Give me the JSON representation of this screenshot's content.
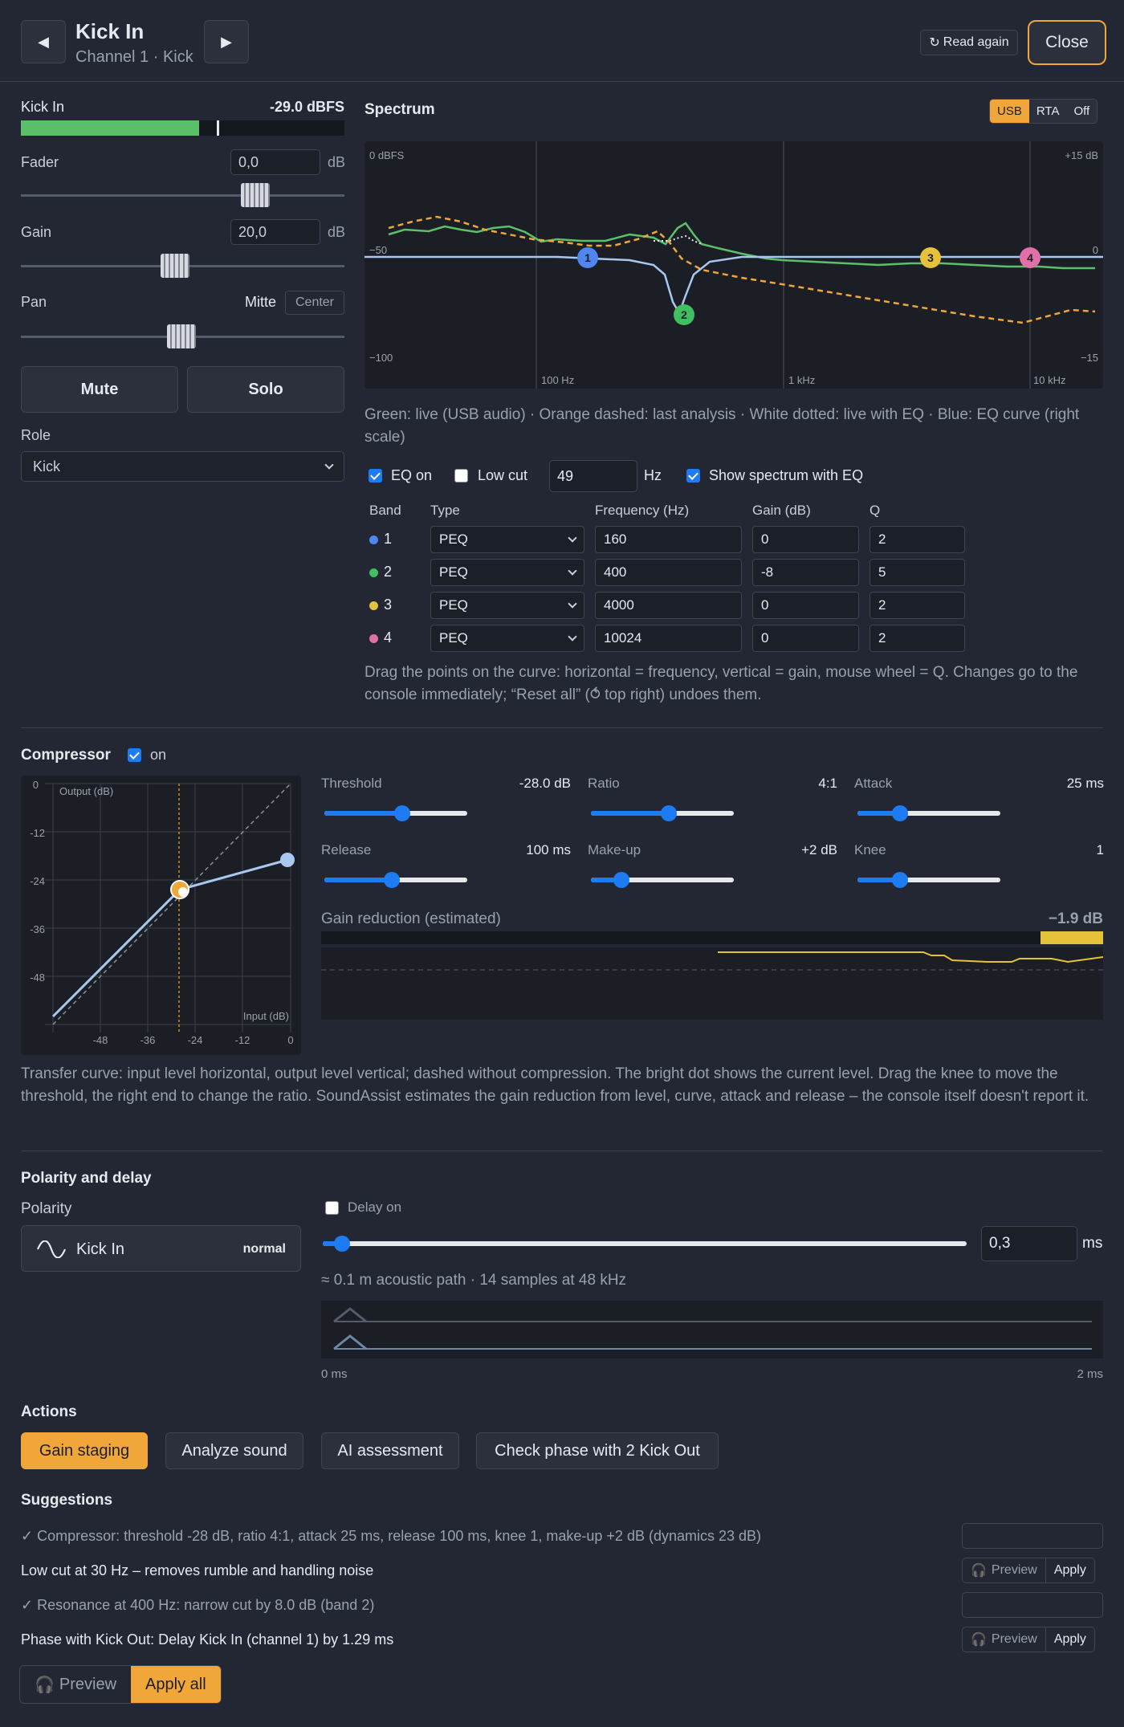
{
  "header": {
    "title": "Kick In",
    "subtitle": "Channel 1 · Kick",
    "prev": "◀",
    "next": "▶",
    "read_again": "Read again",
    "close": "Close"
  },
  "channel": {
    "meter_label": "Kick In",
    "meter_value": "-29.0 dBFS",
    "meter_level": 0.55,
    "fader_label": "Fader",
    "fader_value": "0,0",
    "fader_unit": "dB",
    "gain_label": "Gain",
    "gain_value": "20,0",
    "gain_unit": "dB",
    "pan_label": "Pan",
    "pan_value": "Mitte",
    "pan_center": "Center",
    "mute": "Mute",
    "solo": "Solo",
    "role_label": "Role",
    "role_value": "Kick"
  },
  "spectrum": {
    "title": "Spectrum",
    "modes": [
      "USB",
      "RTA",
      "Off"
    ],
    "active_mode": "USB",
    "labels": {
      "top_left": "0 dBFS",
      "top_right": "+15 dB",
      "mid_left": "−50",
      "mid_right": "0",
      "bot_left": "−100",
      "bot_right": "−15",
      "x1": "100 Hz",
      "x2": "1 kHz",
      "x3": "10 kHz"
    },
    "legend": "Green: live (USB audio) · Orange dashed: last analysis · White dotted: live with EQ · Blue: EQ curve (right scale)",
    "band_markers": [
      "1",
      "2",
      "3",
      "4"
    ]
  },
  "eq": {
    "eq_on": "EQ on",
    "low_cut": "Low cut",
    "low_cut_freq": "49",
    "hz": "Hz",
    "show_spectrum": "Show spectrum with EQ",
    "headers": [
      "Band",
      "Type",
      "Frequency (Hz)",
      "Gain (dB)",
      "Q"
    ],
    "bands": [
      {
        "num": "1",
        "type": "PEQ",
        "freq": "160",
        "gain": "0",
        "q": "2",
        "color": "#4f86f0"
      },
      {
        "num": "2",
        "type": "PEQ",
        "freq": "400",
        "gain": "-8",
        "q": "5",
        "color": "#3fbf62"
      },
      {
        "num": "3",
        "type": "PEQ",
        "freq": "4000",
        "gain": "0",
        "q": "2",
        "color": "#e6c23a"
      },
      {
        "num": "4",
        "type": "PEQ",
        "freq": "10024",
        "gain": "0",
        "q": "2",
        "color": "#e070a8"
      }
    ],
    "help": "Drag the points on the curve: horizontal = frequency, vertical = gain, mouse wheel = Q. Changes go to the console immediately; “Reset all” (⥀ top right) undoes them."
  },
  "compressor": {
    "title": "Compressor",
    "on_label": "on",
    "graph": {
      "ylabel": "Output (dB)",
      "xlabel": "Input (dB)",
      "yticks": [
        "0",
        "-12",
        "-24",
        "-36",
        "-48"
      ],
      "xticks": [
        "-48",
        "-36",
        "-24",
        "-12",
        "0"
      ]
    },
    "params": [
      {
        "name": "Threshold",
        "value": "-28.0 dB",
        "level": 0.55
      },
      {
        "name": "Ratio",
        "value": "4:1",
        "level": 0.55
      },
      {
        "name": "Attack",
        "value": "25 ms",
        "level": 0.27
      },
      {
        "name": "Release",
        "value": "100 ms",
        "level": 0.47
      },
      {
        "name": "Make-up",
        "value": "+2 dB",
        "level": 0.18
      },
      {
        "name": "Knee",
        "value": "1",
        "level": 0.27
      }
    ],
    "gr_label": "Gain reduction (estimated)",
    "gr_value": "−1.9 dB",
    "help": "Transfer curve: input level horizontal, output level vertical; dashed without compression. The bright dot shows the current level. Drag the knee to move the threshold, the right end to change the ratio. SoundAssist estimates the gain reduction from level, curve, attack and release – the console itself doesn't report it."
  },
  "polarity": {
    "title": "Polarity and delay",
    "polarity_label": "Polarity",
    "channel": "Kick In",
    "state": "normal",
    "delay_on": "Delay on",
    "delay_value": "0,3",
    "delay_unit": "ms",
    "info": "≈ 0.1 m acoustic path · 14 samples at 48 kHz",
    "axis_start": "0 ms",
    "axis_end": "2 ms"
  },
  "actions": {
    "title": "Actions",
    "buttons": [
      "Gain staging",
      "Analyze sound",
      "AI assessment",
      "Check phase with 2 Kick Out"
    ]
  },
  "suggestions": {
    "title": "Suggestions",
    "items": [
      {
        "text": "✓ Compressor: threshold -28 dB, ratio 4:1, attack 25 ms, release 100 ms, knee 1, make-up +2 dB (dynamics 23 dB)",
        "done": true
      },
      {
        "text": "Low cut at 30 Hz – removes rumble and handling noise",
        "done": false
      },
      {
        "text": "✓ Resonance at 400 Hz: narrow cut by 8.0 dB (band 2)",
        "done": true
      },
      {
        "text": "Phase with Kick Out: Delay Kick In (channel 1) by 1.29 ms",
        "done": false
      }
    ],
    "preview": "Preview",
    "apply": "Apply",
    "apply_all": "Apply all"
  }
}
